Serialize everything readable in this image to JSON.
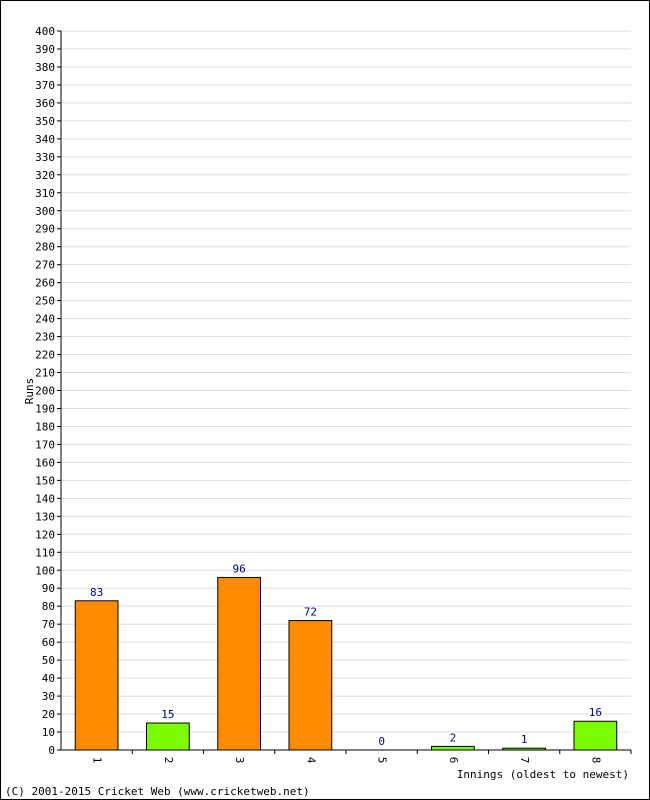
{
  "chart_data": {
    "type": "bar",
    "title": "",
    "ylabel": "Runs",
    "xlabel": "Innings (oldest to newest)",
    "ylim": [
      0,
      400
    ],
    "ytick_step": 10,
    "grid": true,
    "categories": [
      "1",
      "2",
      "3",
      "4",
      "5",
      "6",
      "7",
      "8"
    ],
    "values": [
      83,
      15,
      96,
      72,
      0,
      2,
      1,
      16
    ],
    "value_labels": [
      "83",
      "15",
      "96",
      "72",
      "0",
      "2",
      "1",
      "16"
    ],
    "bar_colors": [
      "#ff8c00",
      "#7cfc00",
      "#ff8c00",
      "#ff8c00",
      "#ff8c00",
      "#7cfc00",
      "#7cfc00",
      "#7cfc00"
    ]
  },
  "footer": {
    "copyright": "(C) 2001-2015 Cricket Web (www.cricketweb.net)"
  }
}
